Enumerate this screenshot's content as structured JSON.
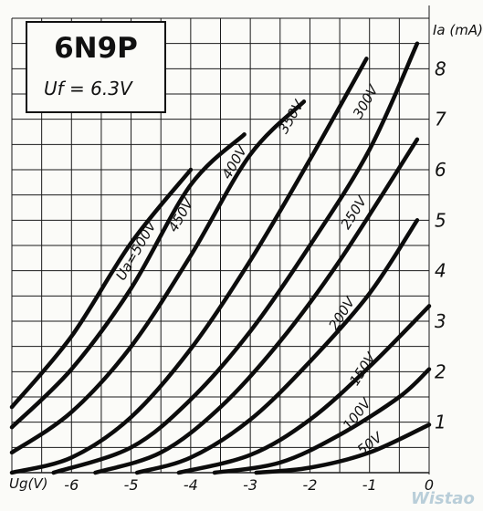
{
  "chart_data": {
    "type": "line",
    "title": "6N9P",
    "subtitle": "Uf = 6.3V",
    "xlabel": "Ug(V)",
    "ylabel": "Ia (mA)",
    "xlim": [
      -7,
      0
    ],
    "ylim": [
      0,
      9
    ],
    "x_ticks": [
      "-6",
      "-5",
      "-4",
      "-3",
      "-2",
      "-1",
      "0"
    ],
    "y_ticks": [
      "1",
      "2",
      "3",
      "4",
      "5",
      "6",
      "7",
      "8"
    ],
    "grid": true,
    "series": [
      {
        "name": "50V",
        "points": [
          [
            -2.9,
            0
          ],
          [
            -2.0,
            0.1
          ],
          [
            -1.0,
            0.4
          ],
          [
            0,
            0.95
          ]
        ]
      },
      {
        "name": "100V",
        "points": [
          [
            -3.6,
            0
          ],
          [
            -2.5,
            0.2
          ],
          [
            -1.5,
            0.75
          ],
          [
            -0.5,
            1.5
          ],
          [
            0,
            2.05
          ]
        ]
      },
      {
        "name": "150V",
        "points": [
          [
            -4.2,
            0
          ],
          [
            -3.0,
            0.35
          ],
          [
            -2.0,
            1.05
          ],
          [
            -1.0,
            2.1
          ],
          [
            0,
            3.3
          ]
        ]
      },
      {
        "name": "200V",
        "points": [
          [
            -4.9,
            0
          ],
          [
            -4.0,
            0.3
          ],
          [
            -3.0,
            1.05
          ],
          [
            -2.0,
            2.2
          ],
          [
            -1.0,
            3.55
          ],
          [
            -0.2,
            5.0
          ]
        ]
      },
      {
        "name": "250V",
        "points": [
          [
            -5.6,
            0
          ],
          [
            -4.5,
            0.4
          ],
          [
            -3.5,
            1.3
          ],
          [
            -2.5,
            2.6
          ],
          [
            -1.5,
            4.2
          ],
          [
            -0.2,
            6.6
          ]
        ]
      },
      {
        "name": "300V",
        "points": [
          [
            -6.3,
            0
          ],
          [
            -5.0,
            0.5
          ],
          [
            -4.0,
            1.45
          ],
          [
            -3.0,
            2.8
          ],
          [
            -2.0,
            4.5
          ],
          [
            -1.0,
            6.4
          ],
          [
            -0.2,
            8.5
          ]
        ]
      },
      {
        "name": "350V",
        "points": [
          [
            -7.0,
            0
          ],
          [
            -6.0,
            0.3
          ],
          [
            -5.0,
            1.1
          ],
          [
            -4.0,
            2.45
          ],
          [
            -3.0,
            4.2
          ],
          [
            -2.0,
            6.2
          ],
          [
            -1.05,
            8.2
          ]
        ]
      },
      {
        "name": "400V",
        "points": [
          [
            -7.0,
            0.4
          ],
          [
            -6.0,
            1.2
          ],
          [
            -5.0,
            2.5
          ],
          [
            -4.0,
            4.3
          ],
          [
            -3.0,
            6.3
          ],
          [
            -2.1,
            7.35
          ]
        ]
      },
      {
        "name": "450V",
        "points": [
          [
            -7.0,
            0.9
          ],
          [
            -6.0,
            2.05
          ],
          [
            -5.0,
            3.65
          ],
          [
            -4.0,
            5.7
          ],
          [
            -3.1,
            6.7
          ]
        ]
      },
      {
        "name": "Ua=500V",
        "points": [
          [
            -7.0,
            1.3
          ],
          [
            -6.0,
            2.7
          ],
          [
            -5.0,
            4.55
          ],
          [
            -4.0,
            6.0
          ]
        ]
      }
    ]
  },
  "watermark": "Wistao"
}
